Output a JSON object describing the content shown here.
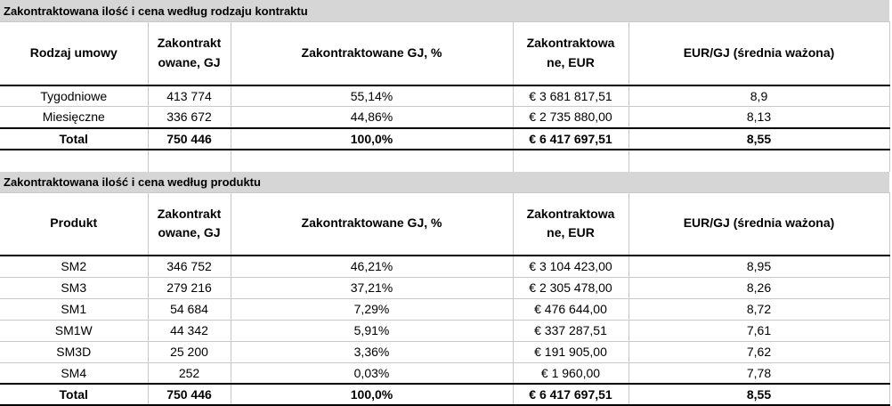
{
  "colors": {
    "title_band_bg": "#d6d6d6",
    "grid_line": "#c9c9c9",
    "strong_border": "#000000",
    "text": "#000000",
    "background": "#ffffff"
  },
  "table1": {
    "title": "Zakontraktowana ilość i cena według rodzaju kontraktu",
    "headers": [
      "Rodzaj umowy",
      "Zakontrakt\nowane, GJ",
      "Zakontraktowane GJ, %",
      "Zakontraktowa\nne, EUR",
      "EUR/GJ (średnia ważona)"
    ],
    "rows": [
      [
        "Tygodniowe",
        "413 774",
        "55,14%",
        "€ 3 681 817,51",
        "8,9"
      ],
      [
        "Miesięczne",
        "336 672",
        "44,86%",
        "€ 2 735 880,00",
        "8,13"
      ]
    ],
    "total": [
      "Total",
      "750 446",
      "100,0%",
      "€ 6 417 697,51",
      "8,55"
    ]
  },
  "table2": {
    "title": "Zakontraktowana ilość i cena według produktu",
    "headers": [
      "Produkt",
      "Zakontrakt\nowane, GJ",
      "Zakontraktowane GJ, %",
      "Zakontraktowa\nne, EUR",
      "EUR/GJ (średnia ważona)"
    ],
    "rows": [
      [
        "SM2",
        "346 752",
        "46,21%",
        "€ 3 104 423,00",
        "8,95"
      ],
      [
        "SM3",
        "279 216",
        "37,21%",
        "€ 2 305 478,00",
        "8,26"
      ],
      [
        "SM1",
        "54 684",
        "7,29%",
        "€ 476 644,00",
        "8,72"
      ],
      [
        "SM1W",
        "44 342",
        "5,91%",
        "€ 337 287,51",
        "7,61"
      ],
      [
        "SM3D",
        "25 200",
        "3,36%",
        "€ 191 905,00",
        "7,62"
      ],
      [
        "SM4",
        "252",
        "0,03%",
        "€ 1 960,00",
        "7,78"
      ]
    ],
    "total": [
      "Total",
      "750 446",
      "100,0%",
      "€ 6 417 697,51",
      "8,55"
    ]
  }
}
